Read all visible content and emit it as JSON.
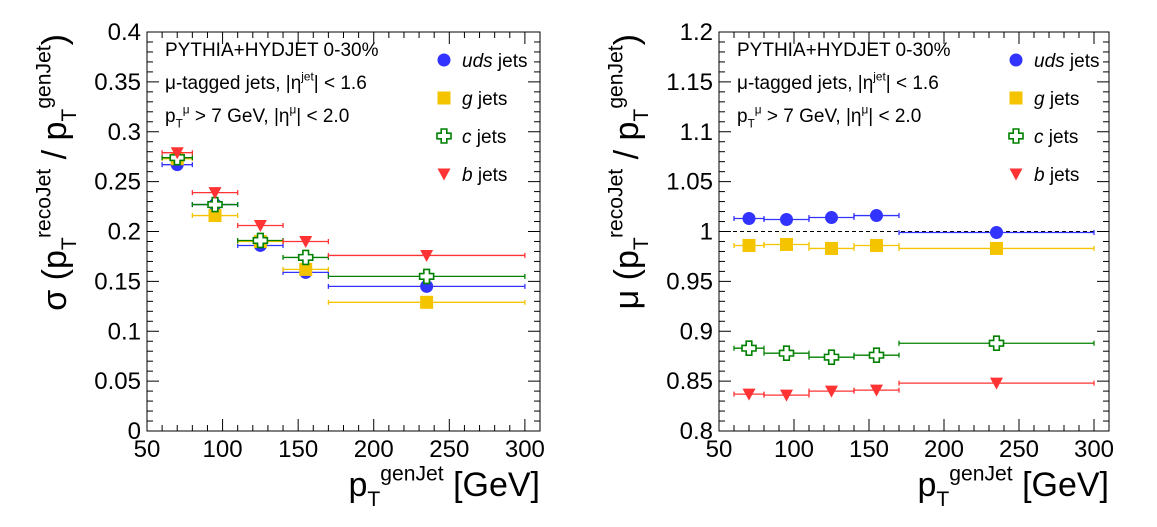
{
  "panels": [
    {
      "info": {
        "line1": "PYTHIA+HYDJET 0-30%",
        "line2": "μ-tagged jets, |η^jet| < 1.6",
        "line3": "p_T^μ > 7 GeV, |η^μ| < 2.0"
      },
      "ylabel": "σ (p_T^recoJet / p_T^genJet)",
      "xlabel": "p_T^genJet [GeV]"
    },
    {
      "info": {
        "line1": "PYTHIA+HYDJET 0-30%",
        "line2": "μ-tagged jets, |η^jet| < 1.6",
        "line3": "p_T^μ > 7 GeV, |η^μ| < 2.0"
      },
      "ylabel": "μ (p_T^recoJet / p_T^genJet)",
      "xlabel": "p_T^genJet [GeV]"
    }
  ],
  "legend": [
    {
      "label": "uds",
      "suffix": "jets"
    },
    {
      "label": "g",
      "suffix": "jets"
    },
    {
      "label": "c",
      "suffix": "jets"
    },
    {
      "label": "b",
      "suffix": "jets"
    }
  ],
  "chart_data": [
    {
      "type": "scatter",
      "title": "",
      "xlabel": "p_T^genJet [GeV]",
      "ylabel": "σ (p_T^recoJet / p_T^genJet)",
      "xlim": [
        50,
        310
      ],
      "ylim": [
        0,
        0.4
      ],
      "xticks": [
        50,
        100,
        150,
        200,
        250,
        300
      ],
      "yticks": [
        0,
        0.05,
        0.1,
        0.15,
        0.2,
        0.25,
        0.3,
        0.35,
        0.4
      ],
      "legend_position": "top-right",
      "bins": [
        [
          60,
          80
        ],
        [
          80,
          110
        ],
        [
          110,
          140
        ],
        [
          140,
          170
        ],
        [
          170,
          300
        ]
      ],
      "series": [
        {
          "name": "uds jets",
          "color": "#3333ff",
          "marker": "circle",
          "x": [
            70,
            95,
            125,
            155,
            235
          ],
          "values": [
            0.267,
            0.227,
            0.186,
            0.159,
            0.145
          ]
        },
        {
          "name": "g jets",
          "color": "#f5c400",
          "marker": "square",
          "x": [
            70,
            95,
            125,
            155,
            235
          ],
          "values": [
            0.273,
            0.216,
            0.19,
            0.162,
            0.129
          ]
        },
        {
          "name": "c jets",
          "color": "#008000",
          "marker": "open-cross",
          "x": [
            70,
            95,
            125,
            155,
            235
          ],
          "values": [
            0.274,
            0.227,
            0.191,
            0.174,
            0.155
          ]
        },
        {
          "name": "b jets",
          "color": "#ff3333",
          "marker": "triangle-down",
          "x": [
            70,
            95,
            125,
            155,
            235
          ],
          "values": [
            0.279,
            0.239,
            0.206,
            0.19,
            0.176
          ]
        }
      ]
    },
    {
      "type": "scatter",
      "title": "",
      "xlabel": "p_T^genJet [GeV]",
      "ylabel": "μ (p_T^recoJet / p_T^genJet)",
      "xlim": [
        50,
        310
      ],
      "ylim": [
        0.8,
        1.2
      ],
      "xticks": [
        50,
        100,
        150,
        200,
        250,
        300
      ],
      "yticks": [
        0.8,
        0.85,
        0.9,
        0.95,
        1,
        1.05,
        1.1,
        1.15,
        1.2
      ],
      "reference_line": 1.0,
      "legend_position": "top-right",
      "bins": [
        [
          60,
          80
        ],
        [
          80,
          110
        ],
        [
          110,
          140
        ],
        [
          140,
          170
        ],
        [
          170,
          300
        ]
      ],
      "series": [
        {
          "name": "uds jets",
          "color": "#3333ff",
          "marker": "circle",
          "x": [
            70,
            95,
            125,
            155,
            235
          ],
          "values": [
            1.013,
            1.012,
            1.014,
            1.016,
            0.999
          ]
        },
        {
          "name": "g jets",
          "color": "#f5c400",
          "marker": "square",
          "x": [
            70,
            95,
            125,
            155,
            235
          ],
          "values": [
            0.986,
            0.987,
            0.983,
            0.986,
            0.983
          ]
        },
        {
          "name": "c jets",
          "color": "#008000",
          "marker": "open-cross",
          "x": [
            70,
            95,
            125,
            155,
            235
          ],
          "values": [
            0.883,
            0.878,
            0.874,
            0.876,
            0.888
          ]
        },
        {
          "name": "b jets",
          "color": "#ff3333",
          "marker": "triangle-down",
          "x": [
            70,
            95,
            125,
            155,
            235
          ],
          "values": [
            0.837,
            0.836,
            0.84,
            0.841,
            0.848
          ]
        }
      ]
    }
  ]
}
